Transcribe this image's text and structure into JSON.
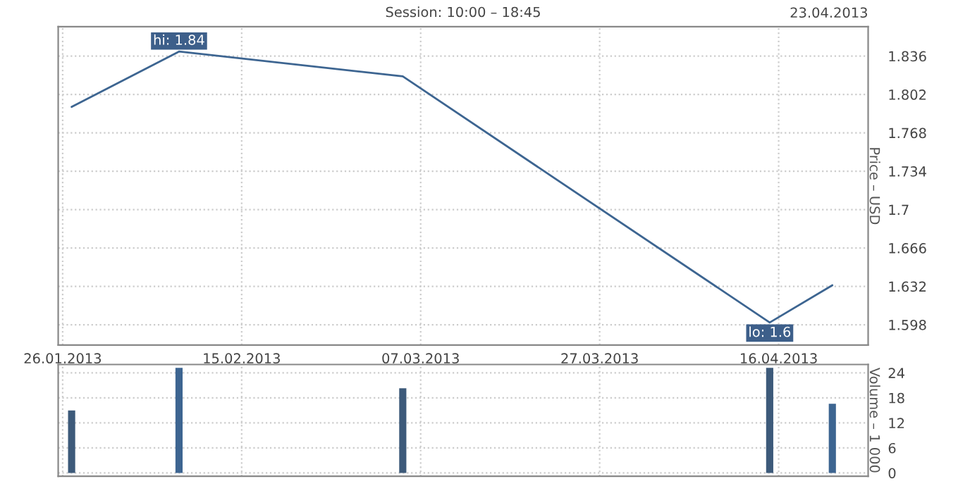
{
  "chart_data": [
    {
      "type": "line",
      "title": "Session: 10:00 – 18:45",
      "ylabel": "Price – USD",
      "x": [
        "2013-01-27",
        "2013-02-08",
        "2013-03-05",
        "2013-04-15",
        "2013-04-22"
      ],
      "series": [
        {
          "color": "#3d6591",
          "values": [
            1.791,
            1.84,
            1.818,
            1.6,
            1.633
          ]
        }
      ],
      "xlim": [
        "2013-01-25T12:00",
        "2013-04-26"
      ],
      "xticks": [
        {
          "value": "2013-01-26",
          "label": "26.01.2013"
        },
        {
          "value": "2013-02-15",
          "label": "15.02.2013"
        },
        {
          "value": "2013-03-07",
          "label": "07.03.2013"
        },
        {
          "value": "2013-03-27",
          "label": "27.03.2013"
        },
        {
          "value": "2013-04-16",
          "label": "16.04.2013"
        }
      ],
      "ylim": [
        1.58,
        1.862
      ],
      "yticks": [
        1.598,
        1.632,
        1.666,
        1.7,
        1.734,
        1.768,
        1.802,
        1.836
      ],
      "grid": true,
      "annotations": [
        "23.04.2013",
        {
          "text": "hi: 1.84",
          "x": "2013-02-08",
          "y": 1.84
        },
        {
          "text": "lo: 1.6",
          "x": "2013-04-15",
          "y": 1.6
        }
      ]
    },
    {
      "type": "bar",
      "ylabel": "Volume – 1 000",
      "x": [
        "2013-01-27",
        "2013-02-08",
        "2013-03-05",
        "2013-04-15",
        "2013-04-22"
      ],
      "values": [
        15,
        25.2,
        20.3,
        25.2,
        16.6
      ],
      "colors": [
        "#3d5a7a",
        "#3d6591",
        "#3d5a7a",
        "#3d5a7a",
        "#3d6591"
      ],
      "xlim": [
        "2013-01-25T12:00",
        "2013-04-26"
      ],
      "xticks": [
        {
          "value": "2013-01-26",
          "label": null
        },
        {
          "value": "2013-02-15",
          "label": null
        },
        {
          "value": "2013-03-07",
          "label": null
        },
        {
          "value": "2013-03-27",
          "label": null
        },
        {
          "value": "2013-04-16",
          "label": null
        }
      ],
      "ylim": [
        -0.8,
        26
      ],
      "yticks": [
        0,
        6,
        12,
        18,
        24
      ],
      "grid": true,
      "tick_labels": "y"
    }
  ]
}
